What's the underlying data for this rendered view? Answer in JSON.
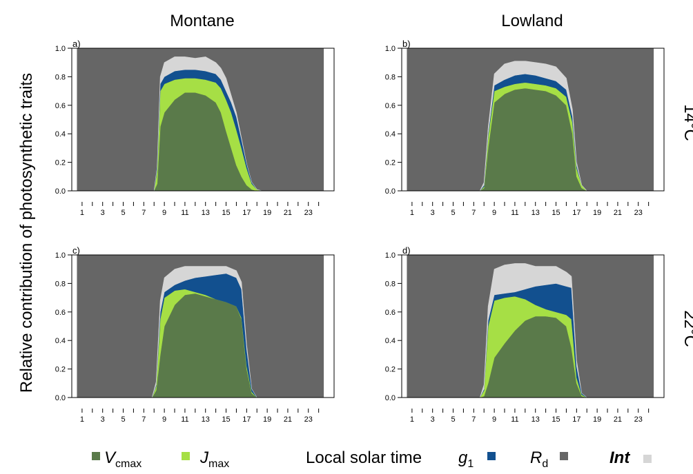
{
  "figure": {
    "column_titles": [
      "Montane",
      "Lowland"
    ],
    "row_titles": [
      "14°C",
      "22°C"
    ],
    "ylabel": "Relative contribution of photosynthetic traits",
    "xlabel": "Local solar time"
  },
  "legend": [
    {
      "key": "vcmax",
      "label": "V",
      "sub": "cmax",
      "italic": true,
      "color": "#5a7a4a",
      "position": "left"
    },
    {
      "key": "jmax",
      "label": "J",
      "sub": "max",
      "italic": true,
      "color": "#a6df45",
      "position": "left"
    },
    {
      "key": "g1",
      "label": "g",
      "sub": "1",
      "italic": true,
      "color": "#12508f",
      "position": "right"
    },
    {
      "key": "rd",
      "label": "R",
      "sub": "d",
      "italic": true,
      "color": "#666666",
      "position": "right"
    },
    {
      "key": "int",
      "label": "Int",
      "sub": "",
      "italic": true,
      "color": "#d6d6d6",
      "position": "right"
    }
  ],
  "chart_data": [
    {
      "type": "area",
      "panel_label": "a)",
      "x_ticks": [
        1,
        3,
        5,
        7,
        9,
        11,
        13,
        15,
        17,
        19,
        21,
        23
      ],
      "y_ticks": [
        "0.0",
        "0.2",
        "0.4",
        "0.6",
        "0.8",
        "1.0"
      ],
      "xlim": [
        0,
        25.5
      ],
      "ylim": [
        0,
        1
      ],
      "stack_order": [
        "vcmax",
        "jmax",
        "g1",
        "int",
        "rd"
      ],
      "stacked": true,
      "x": [
        0.5,
        8.0,
        8.3,
        8.6,
        9.0,
        10.0,
        11.0,
        12.0,
        13.0,
        14.0,
        14.5,
        15.0,
        15.5,
        16.0,
        16.5,
        17.0,
        17.5,
        18.0,
        18.5,
        24.5
      ],
      "series": [
        {
          "key": "vcmax",
          "values": [
            0,
            0,
            0.05,
            0.45,
            0.55,
            0.64,
            0.69,
            0.69,
            0.67,
            0.62,
            0.55,
            0.42,
            0.3,
            0.18,
            0.1,
            0.04,
            0.01,
            0,
            0,
            0
          ]
        },
        {
          "key": "jmax",
          "values": [
            0,
            0,
            0.1,
            0.25,
            0.2,
            0.14,
            0.1,
            0.1,
            0.11,
            0.14,
            0.17,
            0.22,
            0.25,
            0.25,
            0.2,
            0.12,
            0.04,
            0.01,
            0,
            0
          ]
        },
        {
          "key": "g1",
          "values": [
            0,
            0,
            0.02,
            0.05,
            0.05,
            0.06,
            0.06,
            0.06,
            0.06,
            0.06,
            0.06,
            0.06,
            0.07,
            0.09,
            0.06,
            0.03,
            0.01,
            0,
            0,
            0
          ]
        },
        {
          "key": "int",
          "values": [
            0,
            0,
            0,
            0.05,
            0.1,
            0.1,
            0.09,
            0.08,
            0.1,
            0.08,
            0.08,
            0.09,
            0.05,
            0.03,
            0.01,
            0,
            0,
            0,
            0,
            0
          ]
        }
      ]
    },
    {
      "type": "area",
      "panel_label": "b)",
      "x_ticks": [
        1,
        3,
        5,
        7,
        9,
        11,
        13,
        15,
        17,
        19,
        21,
        23
      ],
      "y_ticks": [
        "0.0",
        "0.2",
        "0.4",
        "0.6",
        "0.8",
        "1.0"
      ],
      "xlim": [
        0,
        25.5
      ],
      "ylim": [
        0,
        1
      ],
      "stack_order": [
        "vcmax",
        "jmax",
        "g1",
        "int",
        "rd"
      ],
      "stacked": true,
      "x": [
        0.5,
        7.6,
        8.0,
        8.4,
        9.0,
        10.0,
        11.0,
        12.0,
        13.0,
        14.0,
        15.0,
        16.0,
        16.6,
        17.0,
        17.5,
        18.0,
        24.5
      ],
      "series": [
        {
          "key": "vcmax",
          "values": [
            0,
            0,
            0.02,
            0.3,
            0.62,
            0.68,
            0.71,
            0.72,
            0.71,
            0.7,
            0.67,
            0.6,
            0.4,
            0.1,
            0.02,
            0,
            0
          ]
        },
        {
          "key": "jmax",
          "values": [
            0,
            0,
            0.01,
            0.08,
            0.08,
            0.05,
            0.04,
            0.04,
            0.04,
            0.04,
            0.05,
            0.06,
            0.08,
            0.06,
            0.02,
            0,
            0
          ]
        },
        {
          "key": "g1",
          "values": [
            0,
            0,
            0.01,
            0.02,
            0.04,
            0.05,
            0.06,
            0.06,
            0.06,
            0.05,
            0.05,
            0.05,
            0.04,
            0.02,
            0,
            0,
            0
          ]
        },
        {
          "key": "int",
          "values": [
            0,
            0,
            0.02,
            0.04,
            0.08,
            0.11,
            0.1,
            0.09,
            0.09,
            0.1,
            0.1,
            0.08,
            0.05,
            0.02,
            0,
            0,
            0
          ]
        }
      ]
    },
    {
      "type": "area",
      "panel_label": "c)",
      "x_ticks": [
        1,
        3,
        5,
        7,
        9,
        11,
        13,
        15,
        17,
        19,
        21,
        23
      ],
      "y_ticks": [
        "0.0",
        "0.2",
        "0.4",
        "0.6",
        "0.8",
        "1.0"
      ],
      "xlim": [
        0,
        25.5
      ],
      "ylim": [
        0,
        1
      ],
      "stack_order": [
        "vcmax",
        "jmax",
        "g1",
        "int",
        "rd"
      ],
      "stacked": true,
      "x": [
        0.5,
        7.8,
        8.2,
        8.6,
        9.0,
        10.0,
        11.0,
        12.0,
        13.0,
        14.0,
        15.0,
        16.0,
        16.5,
        17.0,
        17.5,
        18.0,
        24.5
      ],
      "series": [
        {
          "key": "vcmax",
          "values": [
            0,
            0,
            0.05,
            0.3,
            0.5,
            0.65,
            0.72,
            0.73,
            0.71,
            0.69,
            0.67,
            0.64,
            0.55,
            0.2,
            0.03,
            0,
            0
          ]
        },
        {
          "key": "jmax",
          "values": [
            0,
            0,
            0.03,
            0.25,
            0.2,
            0.1,
            0.04,
            0.01,
            0.01,
            0.0,
            0.0,
            0.0,
            0.01,
            0.02,
            0.01,
            0,
            0
          ]
        },
        {
          "key": "g1",
          "values": [
            0,
            0,
            0.01,
            0.05,
            0.04,
            0.04,
            0.06,
            0.1,
            0.13,
            0.17,
            0.2,
            0.2,
            0.2,
            0.12,
            0.02,
            0,
            0
          ]
        },
        {
          "key": "int",
          "values": [
            0,
            0,
            0.02,
            0.08,
            0.1,
            0.11,
            0.1,
            0.08,
            0.07,
            0.06,
            0.05,
            0.05,
            0.05,
            0.03,
            0,
            0,
            0
          ]
        }
      ]
    },
    {
      "type": "area",
      "panel_label": "d)",
      "x_ticks": [
        1,
        3,
        5,
        7,
        9,
        11,
        13,
        15,
        17,
        19,
        21,
        23
      ],
      "y_ticks": [
        "0.0",
        "0.2",
        "0.4",
        "0.6",
        "0.8",
        "1.0"
      ],
      "xlim": [
        0,
        25.5
      ],
      "ylim": [
        0,
        1
      ],
      "stack_order": [
        "vcmax",
        "jmax",
        "g1",
        "int",
        "rd"
      ],
      "stacked": true,
      "x": [
        0.5,
        7.6,
        8.0,
        8.4,
        9.0,
        10.0,
        11.0,
        12.0,
        13.0,
        14.0,
        15.0,
        16.0,
        16.5,
        17.0,
        17.5,
        18.0,
        24.5
      ],
      "series": [
        {
          "key": "vcmax",
          "values": [
            0,
            0,
            0.01,
            0.1,
            0.28,
            0.38,
            0.47,
            0.54,
            0.57,
            0.57,
            0.56,
            0.5,
            0.35,
            0.1,
            0.01,
            0,
            0
          ]
        },
        {
          "key": "jmax",
          "values": [
            0,
            0,
            0.04,
            0.4,
            0.4,
            0.32,
            0.24,
            0.15,
            0.08,
            0.05,
            0.04,
            0.08,
            0.2,
            0.04,
            0.01,
            0,
            0
          ]
        },
        {
          "key": "g1",
          "values": [
            0,
            0,
            0.01,
            0.04,
            0.04,
            0.03,
            0.03,
            0.07,
            0.13,
            0.17,
            0.2,
            0.2,
            0.22,
            0.08,
            0.01,
            0,
            0
          ]
        },
        {
          "key": "int",
          "values": [
            0,
            0,
            0.03,
            0.1,
            0.18,
            0.2,
            0.2,
            0.18,
            0.14,
            0.13,
            0.12,
            0.1,
            0.08,
            0.04,
            0,
            0,
            0
          ]
        }
      ]
    }
  ]
}
